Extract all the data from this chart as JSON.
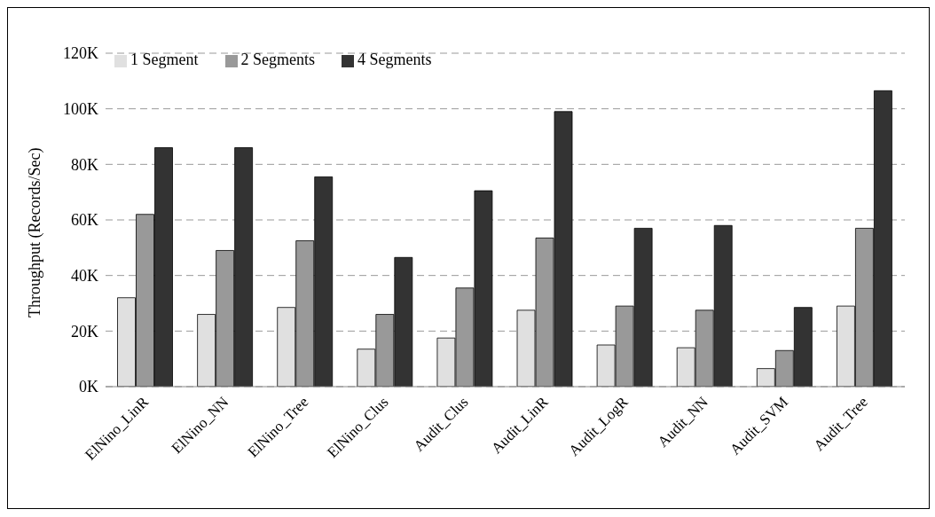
{
  "chart_data": {
    "type": "bar",
    "ylabel": "Throughput  (Records/Sec)",
    "categories": [
      "ElNino_LinR",
      "ElNino_NN",
      "ElNino_Tree",
      "ElNino_Clus",
      "Audit_Clus",
      "Audit_LinR",
      "Audit_LogR",
      "Audit_NN",
      "Audit_SVM",
      "Audit_Tree"
    ],
    "series": [
      {
        "name": "1 Segment",
        "color": "#e0e0e0",
        "values": [
          32000,
          26000,
          28500,
          13500,
          17500,
          27500,
          15000,
          14000,
          6500,
          29000
        ]
      },
      {
        "name": "2 Segments",
        "color": "#999999",
        "values": [
          62000,
          49000,
          52500,
          26000,
          35500,
          53500,
          29000,
          27500,
          13000,
          57000
        ]
      },
      {
        "name": "4 Segments",
        "color": "#333333",
        "values": [
          86000,
          86000,
          75500,
          46500,
          70500,
          99000,
          57000,
          58000,
          28500,
          106500
        ]
      }
    ],
    "ylim": [
      0,
      120000
    ],
    "yticks": [
      {
        "value": 0,
        "label": "0K"
      },
      {
        "value": 20000,
        "label": "20K"
      },
      {
        "value": 40000,
        "label": "40K"
      },
      {
        "value": 60000,
        "label": "60K"
      },
      {
        "value": 80000,
        "label": "80K"
      },
      {
        "value": 100000,
        "label": "100K"
      },
      {
        "value": 120000,
        "label": "120K"
      }
    ],
    "grid": "y",
    "legend": "top left"
  }
}
